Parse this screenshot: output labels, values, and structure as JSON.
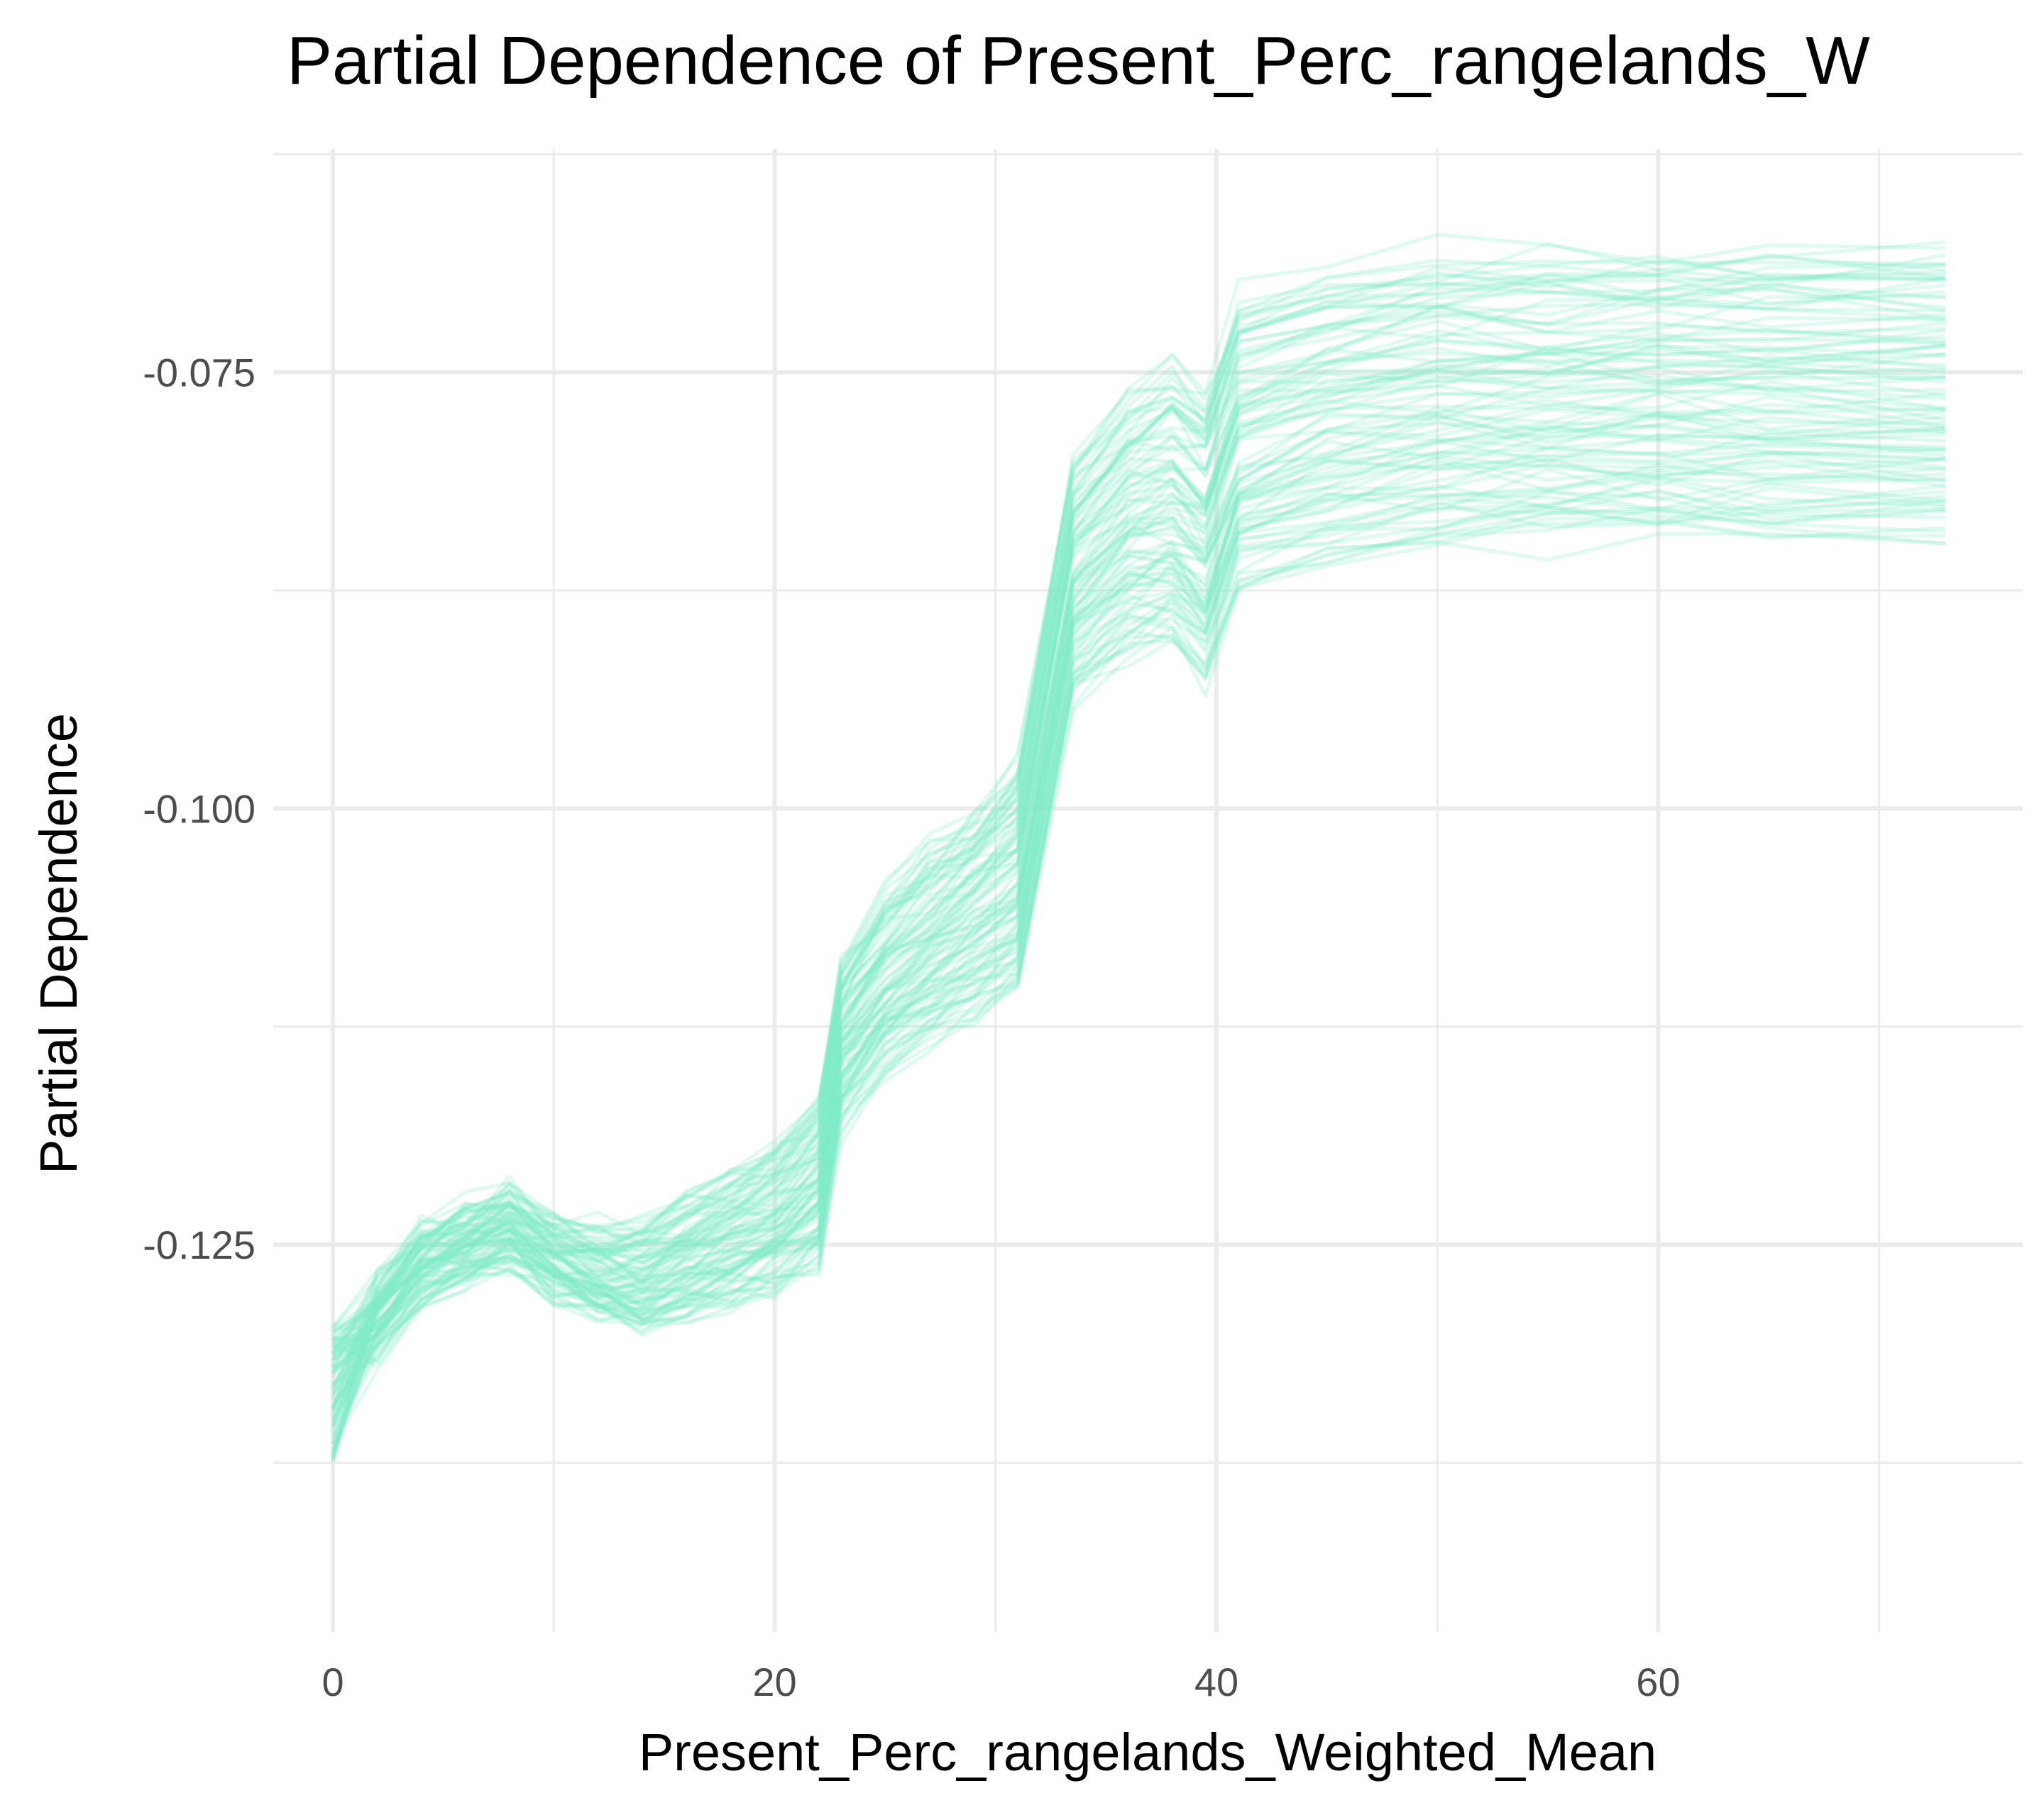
{
  "chart_data": {
    "type": "line",
    "title": "Partial Dependence of Present_Perc_rangelands_W",
    "xlabel": "Present_Perc_rangelands_Weighted_Mean",
    "ylabel": "Partial Dependence",
    "xlim": [
      -2.7,
      76.5
    ],
    "ylim": [
      -0.1472,
      -0.0622
    ],
    "x_ticks": [
      0,
      20,
      40,
      60
    ],
    "x_tick_labels": [
      "0",
      "20",
      "40",
      "60"
    ],
    "x_minor_breaks": [
      10,
      30,
      50,
      70
    ],
    "y_ticks": [
      -0.125,
      -0.1,
      -0.075
    ],
    "y_tick_labels": [
      "-0.125",
      "-0.100",
      "-0.075"
    ],
    "y_minor_breaks": [
      -0.1375,
      -0.1125,
      -0.0875,
      -0.0625
    ],
    "grid": true,
    "legend": "none",
    "line_color": "#7fecc6",
    "line_opacity": 0.25,
    "description": "Individual conditional expectation curves (about 100 lines)",
    "x": [
      0,
      2,
      4,
      6,
      8,
      10,
      12,
      14,
      16,
      18,
      20,
      22,
      23,
      25,
      27,
      29,
      31,
      33.5,
      36,
      38,
      39.5,
      41,
      45,
      50,
      55,
      60,
      65,
      73
    ],
    "mean_curve": [
      -0.1335,
      -0.1295,
      -0.1265,
      -0.1255,
      -0.1245,
      -0.1262,
      -0.1272,
      -0.1276,
      -0.1266,
      -0.1255,
      -0.1245,
      -0.1225,
      -0.1145,
      -0.1112,
      -0.1092,
      -0.1075,
      -0.1055,
      -0.0885,
      -0.0855,
      -0.0845,
      -0.0865,
      -0.081,
      -0.0795,
      -0.0785,
      -0.0782,
      -0.0781,
      -0.0781,
      -0.0781
    ],
    "offset_range": [
      -0.0075,
      0.0115
    ]
  }
}
